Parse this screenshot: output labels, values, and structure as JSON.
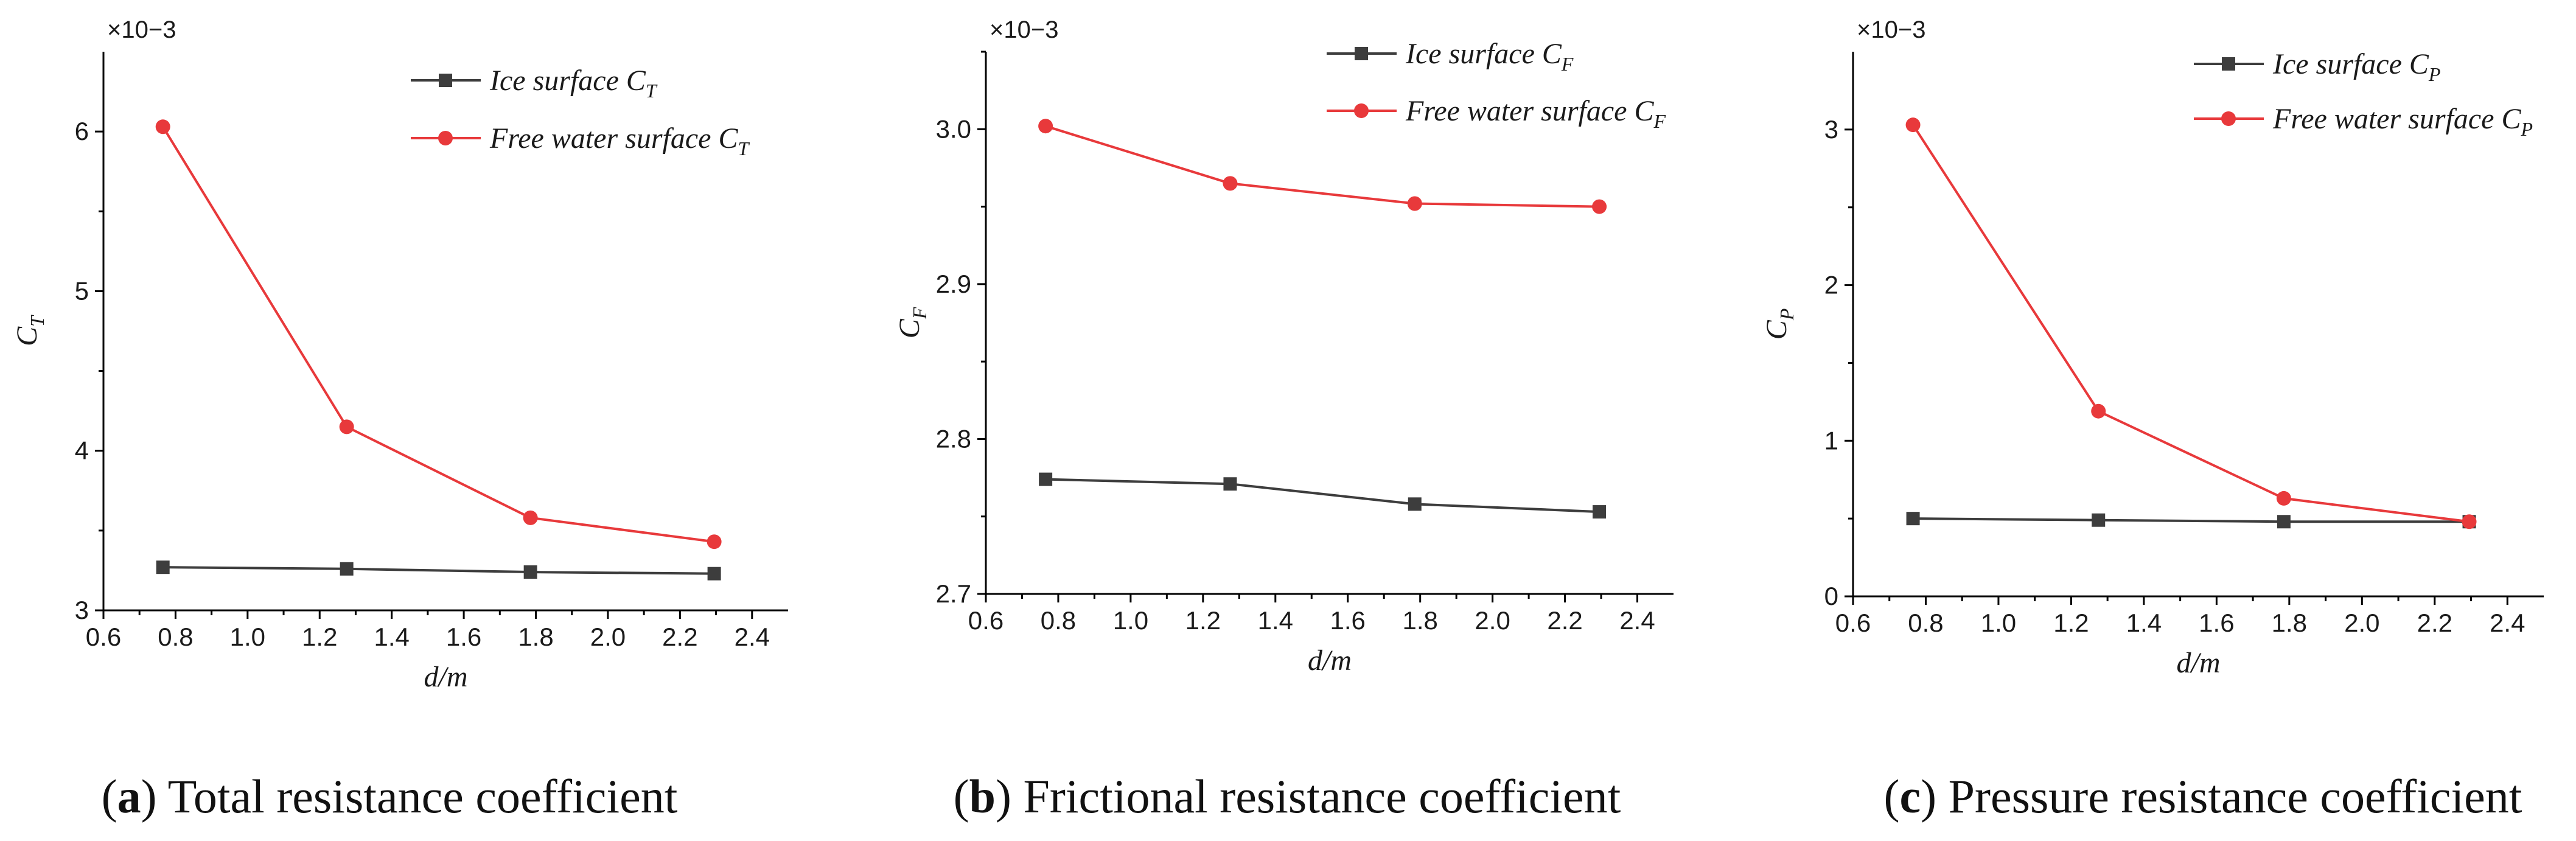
{
  "chart_data": [
    {
      "type": "line",
      "id": "a",
      "caption_letter": "a",
      "caption_text": " Total resistance coefficient",
      "xlabel": "d/m",
      "ylabel_main": "C",
      "ylabel_sub": "T",
      "multiplier": "×10−3",
      "xlim": [
        0.6,
        2.5
      ],
      "ylim": [
        3,
        6.5
      ],
      "xticks": [
        "0.6",
        "0.8",
        "1.0",
        "1.2",
        "1.4",
        "1.6",
        "1.8",
        "2.0",
        "2.2",
        "2.4"
      ],
      "yticks": [
        "3",
        "4",
        "5",
        "6"
      ],
      "x": [
        0.765,
        1.275,
        1.785,
        2.295
      ],
      "series": [
        {
          "name": "Ice surface C",
          "sub": "T",
          "color": "#3d3d3d",
          "marker": "square",
          "values": [
            3.27,
            3.26,
            3.24,
            3.23
          ]
        },
        {
          "name": "Free water surface C",
          "sub": "T",
          "color": "#e8393b",
          "marker": "circle",
          "values": [
            6.03,
            4.15,
            3.58,
            3.43
          ]
        }
      ]
    },
    {
      "type": "line",
      "id": "b",
      "caption_letter": "b",
      "caption_text": " Frictional resistance coefficient",
      "xlabel": "d/m",
      "ylabel_main": "C",
      "ylabel_sub": "F",
      "multiplier": "×10−3",
      "xlim": [
        0.6,
        2.5
      ],
      "ylim": [
        2.7,
        3.05
      ],
      "xticks": [
        "0.6",
        "0.8",
        "1.0",
        "1.2",
        "1.4",
        "1.6",
        "1.8",
        "2.0",
        "2.2",
        "2.4"
      ],
      "yticks": [
        "2.7",
        "2.8",
        "2.9",
        "3.0"
      ],
      "x": [
        0.765,
        1.275,
        1.785,
        2.295
      ],
      "series": [
        {
          "name": "Ice surface C",
          "sub": "F",
          "color": "#3d3d3d",
          "marker": "square",
          "values": [
            2.774,
            2.771,
            2.758,
            2.753
          ]
        },
        {
          "name": "Free water surface C",
          "sub": "F",
          "color": "#e8393b",
          "marker": "circle",
          "values": [
            3.002,
            2.965,
            2.952,
            2.95
          ]
        }
      ]
    },
    {
      "type": "line",
      "id": "c",
      "caption_letter": "c",
      "caption_text": " Pressure resistance coefficient",
      "xlabel": "d/m",
      "ylabel_main": "C",
      "ylabel_sub": "P",
      "multiplier": "×10−3",
      "xlim": [
        0.6,
        2.5
      ],
      "ylim": [
        0,
        3.5
      ],
      "xticks": [
        "0.6",
        "0.8",
        "1.0",
        "1.2",
        "1.4",
        "1.6",
        "1.8",
        "2.0",
        "2.2",
        "2.4"
      ],
      "yticks": [
        "0",
        "1",
        "2",
        "3"
      ],
      "x": [
        0.765,
        1.275,
        1.785,
        2.295
      ],
      "series": [
        {
          "name": "Ice surface C",
          "sub": "P",
          "color": "#3d3d3d",
          "marker": "square",
          "values": [
            0.5,
            0.49,
            0.48,
            0.48
          ]
        },
        {
          "name": "Free water surface C",
          "sub": "P",
          "color": "#e8393b",
          "marker": "circle",
          "values": [
            3.03,
            1.19,
            0.63,
            0.48
          ]
        }
      ]
    }
  ]
}
